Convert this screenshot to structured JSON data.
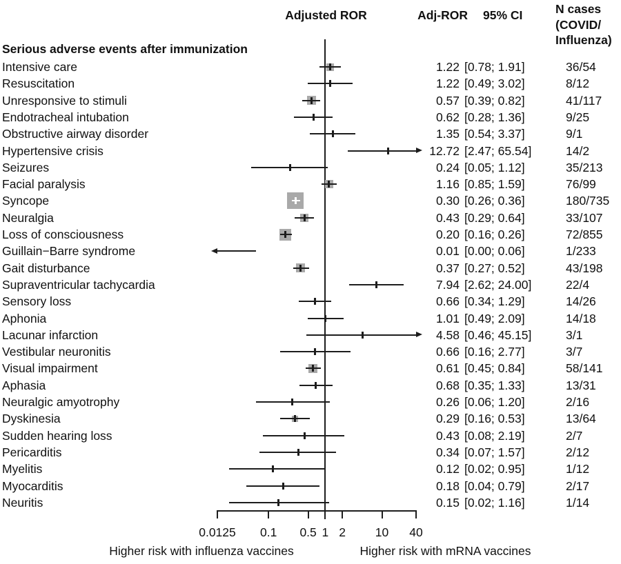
{
  "chart_data": {
    "type": "scatter",
    "subtype": "forest-plot",
    "section_title": "Serious adverse events after immunization",
    "columns": {
      "plot": "Adjusted ROR",
      "ror": "Adj-ROR",
      "ci": "95% CI",
      "n_lines": [
        "N cases",
        "(COVID/",
        "Influenza)"
      ]
    },
    "x_scale": "log",
    "xlim": [
      0.0125,
      40
    ],
    "x_ticks": [
      0.0125,
      0.1,
      0.5,
      1,
      2,
      10,
      40
    ],
    "x_tick_labels": [
      "0.0125",
      "0.1",
      "0.5",
      "1",
      "2",
      "10",
      "40"
    ],
    "reference_line": 1,
    "x_axis_note_left": "Higher risk with influenza vaccines",
    "x_axis_note_right": "Higher risk with mRNA vaccines",
    "marker_color": "#a9a9a9",
    "line_color": "#1c1c1c",
    "rows": [
      {
        "label": "Intensive care",
        "ror": 1.22,
        "ci_lo": 0.78,
        "ci_hi": 1.91,
        "ror_text": "1.22",
        "ci_text": "[0.78; 1.91]",
        "n_text": "36/54",
        "square": 11
      },
      {
        "label": "Resuscitation",
        "ror": 1.22,
        "ci_lo": 0.49,
        "ci_hi": 3.02,
        "ror_text": "1.22",
        "ci_text": "[0.49; 3.02]",
        "n_text": "8/12",
        "square": 0
      },
      {
        "label": "Unresponsive to stimuli",
        "ror": 0.57,
        "ci_lo": 0.39,
        "ci_hi": 0.82,
        "ror_text": "0.57",
        "ci_text": "[0.39; 0.82]",
        "n_text": "41/117",
        "square": 13
      },
      {
        "label": "Endotracheal intubation",
        "ror": 0.62,
        "ci_lo": 0.28,
        "ci_hi": 1.36,
        "ror_text": "0.62",
        "ci_text": "[0.28; 1.36]",
        "n_text": "9/25",
        "square": 0
      },
      {
        "label": "Obstructive airway disorder",
        "ror": 1.35,
        "ci_lo": 0.54,
        "ci_hi": 3.37,
        "ror_text": "1.35",
        "ci_text": "[0.54; 3.37]",
        "n_text": "9/1",
        "square": 0
      },
      {
        "label": "Hypertensive crisis",
        "ror": 12.72,
        "ci_lo": 2.47,
        "ci_hi": 65.54,
        "ror_text": "12.72",
        "ci_text": "[2.47; 65.54]",
        "n_text": "14/2",
        "square": 0
      },
      {
        "label": "Seizures",
        "ror": 0.24,
        "ci_lo": 0.05,
        "ci_hi": 1.12,
        "ror_text": "0.24",
        "ci_text": "[0.05; 1.12]",
        "n_text": "35/213",
        "square": 0
      },
      {
        "label": "Facial paralysis",
        "ror": 1.16,
        "ci_lo": 0.85,
        "ci_hi": 1.59,
        "ror_text": "1.16",
        "ci_text": "[0.85; 1.59]",
        "n_text": "76/99",
        "square": 12
      },
      {
        "label": "Syncope",
        "ror": 0.3,
        "ci_lo": 0.26,
        "ci_hi": 0.36,
        "ror_text": "0.30",
        "ci_text": "[0.26; 0.36]",
        "n_text": "180/735",
        "square": 24
      },
      {
        "label": "Neuralgia",
        "ror": 0.43,
        "ci_lo": 0.29,
        "ci_hi": 0.64,
        "ror_text": "0.43",
        "ci_text": "[0.29; 0.64]",
        "n_text": "33/107",
        "square": 12
      },
      {
        "label": "Loss of consciousness",
        "ror": 0.2,
        "ci_lo": 0.16,
        "ci_hi": 0.26,
        "ror_text": "0.20",
        "ci_text": "[0.16; 0.26]",
        "n_text": "72/855",
        "square": 17
      },
      {
        "label": "Guillain−Barre syndrome",
        "ror": 0.01,
        "ci_lo": 0.0,
        "ci_hi": 0.06,
        "ror_text": "0.01",
        "ci_text": "[0.00; 0.06]",
        "n_text": "1/233",
        "square": 0
      },
      {
        "label": "Gait disturbance",
        "ror": 0.37,
        "ci_lo": 0.27,
        "ci_hi": 0.52,
        "ror_text": "0.37",
        "ci_text": "[0.27; 0.52]",
        "n_text": "43/198",
        "square": 13
      },
      {
        "label": "Supraventricular tachycardia",
        "ror": 7.94,
        "ci_lo": 2.62,
        "ci_hi": 24.0,
        "ror_text": "7.94",
        "ci_text": "[2.62; 24.00]",
        "n_text": "22/4",
        "square": 0
      },
      {
        "label": "Sensory loss",
        "ror": 0.66,
        "ci_lo": 0.34,
        "ci_hi": 1.29,
        "ror_text": "0.66",
        "ci_text": "[0.34; 1.29]",
        "n_text": "14/26",
        "square": 0
      },
      {
        "label": "Aphonia",
        "ror": 1.01,
        "ci_lo": 0.49,
        "ci_hi": 2.09,
        "ror_text": "1.01",
        "ci_text": "[0.49; 2.09]",
        "n_text": "14/18",
        "square": 0
      },
      {
        "label": "Lacunar infarction",
        "ror": 4.58,
        "ci_lo": 0.46,
        "ci_hi": 45.15,
        "ror_text": "4.58",
        "ci_text": "[0.46; 45.15]",
        "n_text": "3/1",
        "square": 0
      },
      {
        "label": "Vestibular neuronitis",
        "ror": 0.66,
        "ci_lo": 0.16,
        "ci_hi": 2.77,
        "ror_text": "0.66",
        "ci_text": "[0.16; 2.77]",
        "n_text": "3/7",
        "square": 0
      },
      {
        "label": "Visual impairment",
        "ror": 0.61,
        "ci_lo": 0.45,
        "ci_hi": 0.84,
        "ror_text": "0.61",
        "ci_text": "[0.45; 0.84]",
        "n_text": "58/141",
        "square": 13
      },
      {
        "label": "Aphasia",
        "ror": 0.68,
        "ci_lo": 0.35,
        "ci_hi": 1.33,
        "ror_text": "0.68",
        "ci_text": "[0.35; 1.33]",
        "n_text": "13/31",
        "square": 0
      },
      {
        "label": "Neuralgic amyotrophy",
        "ror": 0.26,
        "ci_lo": 0.06,
        "ci_hi": 1.2,
        "ror_text": "0.26",
        "ci_text": "[0.06; 1.20]",
        "n_text": "2/16",
        "square": 0
      },
      {
        "label": "Dyskinesia",
        "ror": 0.29,
        "ci_lo": 0.16,
        "ci_hi": 0.53,
        "ror_text": "0.29",
        "ci_text": "[0.16; 0.53]",
        "n_text": "13/64",
        "square": 9
      },
      {
        "label": "Sudden hearing loss",
        "ror": 0.43,
        "ci_lo": 0.08,
        "ci_hi": 2.19,
        "ror_text": "0.43",
        "ci_text": "[0.08; 2.19]",
        "n_text": "2/7",
        "square": 0
      },
      {
        "label": "Pericarditis",
        "ror": 0.34,
        "ci_lo": 0.07,
        "ci_hi": 1.57,
        "ror_text": "0.34",
        "ci_text": "[0.07; 1.57]",
        "n_text": "2/12",
        "square": 0
      },
      {
        "label": "Myelitis",
        "ror": 0.12,
        "ci_lo": 0.02,
        "ci_hi": 0.95,
        "ror_text": "0.12",
        "ci_text": "[0.02; 0.95]",
        "n_text": "1/12",
        "square": 0
      },
      {
        "label": "Myocarditis",
        "ror": 0.18,
        "ci_lo": 0.04,
        "ci_hi": 0.79,
        "ror_text": "0.18",
        "ci_text": "[0.04; 0.79]",
        "n_text": "2/17",
        "square": 0
      },
      {
        "label": "Neuritis",
        "ror": 0.15,
        "ci_lo": 0.02,
        "ci_hi": 1.16,
        "ror_text": "0.15",
        "ci_text": "[0.02; 1.16]",
        "n_text": "1/14",
        "square": 0
      }
    ]
  }
}
